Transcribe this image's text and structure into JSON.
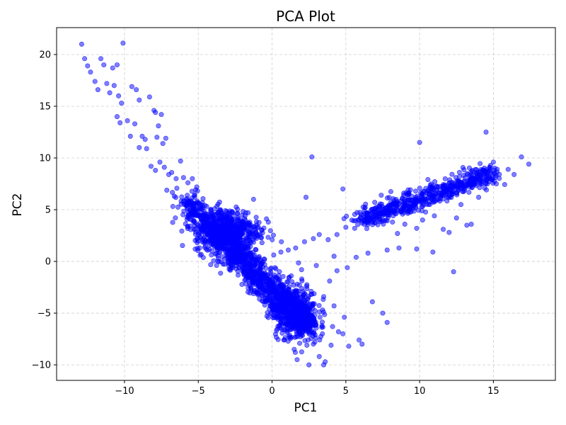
{
  "chart_data": {
    "type": "scatter",
    "title": "PCA Plot",
    "xlabel": "PC1",
    "ylabel": "PC2",
    "xlim": [
      -14.6,
      19.2
    ],
    "ylim": [
      -11.5,
      22.6
    ],
    "xticks": [
      -10,
      -5,
      0,
      5,
      10,
      15
    ],
    "yticks": [
      -10,
      -5,
      0,
      5,
      10,
      15,
      20
    ],
    "xtick_labels": [
      "−10",
      "−5",
      "0",
      "5",
      "10",
      "15"
    ],
    "ytick_labels": [
      "−10",
      "−5",
      "0",
      "5",
      "10",
      "15",
      "20"
    ],
    "grid": true,
    "marker_color": "#0000ff",
    "marker_alpha": 0.5,
    "series": [
      {
        "points": [
          [
            -12.9,
            21.0
          ],
          [
            -12.7,
            19.6
          ],
          [
            -12.5,
            18.9
          ],
          [
            -12.3,
            18.3
          ],
          [
            -12.0,
            17.4
          ],
          [
            -11.8,
            16.6
          ],
          [
            -11.6,
            19.6
          ],
          [
            -11.4,
            19.0
          ],
          [
            -11.2,
            17.2
          ],
          [
            -11.0,
            16.3
          ],
          [
            -10.8,
            18.7
          ],
          [
            -10.5,
            19.0
          ],
          [
            -10.7,
            17.0
          ],
          [
            -10.4,
            16.0
          ],
          [
            -10.1,
            21.1
          ],
          [
            -10.2,
            15.3
          ],
          [
            -10.5,
            14.0
          ],
          [
            -10.3,
            13.4
          ],
          [
            -9.8,
            13.6
          ],
          [
            -9.5,
            16.9
          ],
          [
            -9.2,
            16.6
          ],
          [
            -9.0,
            15.6
          ],
          [
            -9.3,
            13.3
          ],
          [
            -9.6,
            12.1
          ],
          [
            -8.8,
            12.1
          ],
          [
            -8.6,
            11.8
          ],
          [
            -9.0,
            11.0
          ],
          [
            -8.5,
            10.9
          ],
          [
            -8.3,
            15.9
          ],
          [
            -8.0,
            14.6
          ],
          [
            -7.9,
            14.4
          ],
          [
            -7.7,
            13.1
          ],
          [
            -7.5,
            14.2
          ],
          [
            -7.8,
            12.0
          ],
          [
            -7.4,
            11.4
          ],
          [
            -7.2,
            11.9
          ],
          [
            -8.2,
            9.2
          ],
          [
            -7.9,
            8.8
          ],
          [
            -7.6,
            9.6
          ],
          [
            -7.3,
            9.1
          ],
          [
            -7.0,
            8.4
          ],
          [
            -6.8,
            8.6
          ],
          [
            -6.5,
            8.0
          ],
          [
            -6.2,
            9.7
          ],
          [
            -6.0,
            8.1
          ],
          [
            -5.7,
            7.6
          ],
          [
            -5.4,
            8.0
          ],
          [
            -5.1,
            7.2
          ],
          [
            2.7,
            10.1
          ],
          [
            14.5,
            12.5
          ],
          [
            10.0,
            11.5
          ],
          [
            2.3,
            6.2
          ],
          [
            4.8,
            7.0
          ],
          [
            7.4,
            6.4
          ],
          [
            8.5,
            5.0
          ],
          [
            9.2,
            6.1
          ],
          [
            16.9,
            10.1
          ],
          [
            17.4,
            9.4
          ],
          [
            16.0,
            8.9
          ],
          [
            15.0,
            9.6
          ],
          [
            12.3,
            -1.0
          ],
          [
            10.9,
            0.9
          ],
          [
            9.8,
            1.2
          ],
          [
            8.6,
            1.3
          ],
          [
            7.8,
            1.1
          ],
          [
            6.5,
            0.8
          ],
          [
            5.7,
            0.4
          ],
          [
            5.1,
            -0.6
          ],
          [
            4.4,
            -0.9
          ],
          [
            3.9,
            -1.9
          ],
          [
            6.8,
            -3.9
          ],
          [
            7.5,
            -5.0
          ],
          [
            7.8,
            -5.9
          ],
          [
            5.9,
            -7.6
          ],
          [
            6.1,
            -8.0
          ],
          [
            5.2,
            -8.2
          ],
          [
            4.8,
            -7.0
          ],
          [
            4.5,
            -6.8
          ],
          [
            4.0,
            -8.1
          ],
          [
            3.2,
            -9.2
          ],
          [
            3.6,
            -9.7
          ],
          [
            3.5,
            -10.0
          ],
          [
            2.5,
            -10.0
          ],
          [
            1.7,
            -9.5
          ],
          [
            0.8,
            -7.6
          ],
          [
            0.3,
            -6.7
          ],
          [
            1.3,
            -1.4
          ],
          [
            0.5,
            -1.0
          ],
          [
            12.5,
            4.2
          ],
          [
            13.2,
            3.5
          ],
          [
            11.0,
            4.4
          ],
          [
            11.6,
            3.1
          ],
          [
            10.2,
            4.0
          ],
          [
            9.8,
            3.2
          ],
          [
            9.0,
            3.6
          ],
          [
            8.5,
            2.7
          ],
          [
            6.6,
            4.4
          ],
          [
            6.1,
            3.7
          ],
          [
            5.6,
            3.2
          ],
          [
            5.0,
            3.3
          ],
          [
            4.4,
            2.6
          ],
          [
            3.8,
            2.1
          ],
          [
            3.2,
            2.6
          ],
          [
            2.8,
            2.2
          ],
          [
            2.2,
            1.9
          ],
          [
            1.6,
            1.3
          ],
          [
            1.1,
            1.1
          ],
          [
            0.6,
            0.9
          ],
          [
            -0.5,
            -0.3
          ],
          [
            0.2,
            -0.6
          ],
          [
            13.5,
            3.6
          ],
          [
            12.0,
            2.8
          ],
          [
            12.8,
            5.5
          ],
          [
            14.0,
            6.2
          ],
          [
            15.2,
            7.5
          ],
          [
            16.4,
            8.4
          ],
          [
            3.0,
            -0.4
          ],
          [
            4.2,
            0.5
          ],
          [
            2.0,
            -0.8
          ],
          [
            3.5,
            -3.4
          ],
          [
            4.2,
            -4.3
          ],
          [
            4.9,
            -5.4
          ],
          [
            4.1,
            -6.3
          ],
          [
            2.9,
            -7.8
          ],
          [
            1.5,
            -8.5
          ]
        ]
      }
    ]
  }
}
